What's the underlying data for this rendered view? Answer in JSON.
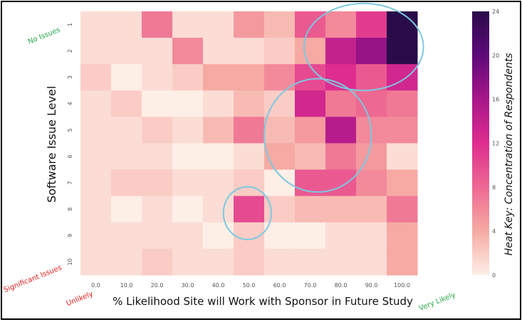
{
  "chart_data": {
    "type": "heatmap",
    "xlabel": "% Likelihood Site will Work with Sponsor in Future Study",
    "ylabel": "Software Issue Level",
    "x_categories": [
      "0.0",
      "10.0",
      "20.0",
      "30.0",
      "40.0",
      "50.0",
      "60.0",
      "70.0",
      "80.0",
      "90.0",
      "100.0"
    ],
    "y_categories": [
      "1",
      "2",
      "3",
      "4",
      "5",
      "6",
      "7",
      "8",
      "9",
      "10"
    ],
    "values": [
      [
        1,
        1,
        7,
        1,
        1,
        5,
        3,
        9,
        6,
        11,
        24
      ],
      [
        1,
        1,
        1,
        6,
        1,
        1,
        2,
        4,
        14,
        17,
        24
      ],
      [
        2,
        0,
        1,
        2,
        4,
        4,
        6,
        10,
        12,
        9,
        13
      ],
      [
        1,
        2,
        0,
        0,
        1,
        3,
        2,
        13,
        7,
        8,
        7
      ],
      [
        1,
        1,
        2,
        1,
        3,
        7,
        3,
        5,
        15,
        6,
        6
      ],
      [
        1,
        1,
        1,
        0,
        0,
        1,
        4,
        3,
        7,
        5,
        1
      ],
      [
        1,
        2,
        2,
        1,
        1,
        2,
        0,
        9,
        9,
        6,
        4
      ],
      [
        1,
        0,
        1,
        0,
        1,
        10,
        2,
        3,
        3,
        3,
        7
      ],
      [
        1,
        1,
        1,
        1,
        0,
        2,
        0,
        0,
        1,
        1,
        4
      ],
      [
        1,
        1,
        2,
        1,
        1,
        2,
        1,
        1,
        1,
        1,
        4
      ]
    ],
    "colorbar": {
      "title": "Heat Key: Concentration of Respondents",
      "ticks": [
        0,
        4,
        8,
        12,
        16,
        20,
        24
      ],
      "range": [
        0,
        24
      ],
      "colors": [
        "#fdeee6",
        "#f6aaa3",
        "#ee6992",
        "#de2d8f",
        "#a8168a",
        "#5e0a7a",
        "#2a0b4a"
      ]
    },
    "grid": false,
    "annotations": [
      {
        "text": "No Issues",
        "color": "#2aa84a"
      },
      {
        "text": "Significant Issues",
        "color": "#e02020"
      },
      {
        "text": "Unlikely",
        "color": "#e02020"
      },
      {
        "text": "Very Likely",
        "color": "#2aa84a"
      }
    ],
    "highlight_color": "#7cc8e0"
  }
}
